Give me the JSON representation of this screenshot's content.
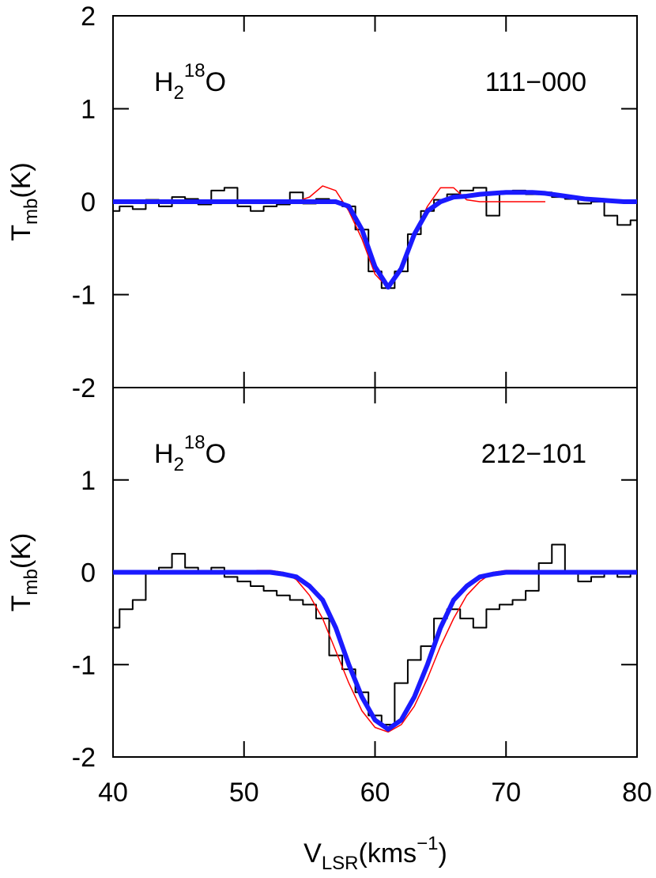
{
  "chart_data": [
    {
      "type": "line",
      "molecule": [
        "H",
        "2",
        "18",
        "O"
      ],
      "transition": "111−000",
      "ylabel": [
        "T",
        "mb",
        "(K)"
      ],
      "xlim": [
        40,
        80
      ],
      "ylim": [
        -2,
        2
      ],
      "yticks": [
        -2,
        -1,
        0,
        1,
        2
      ],
      "series": [
        {
          "color": "#000000",
          "drawstyle": "steps-mid",
          "width": 2,
          "x": [
            40,
            41,
            42,
            43,
            44,
            45,
            46,
            47,
            48,
            49,
            50,
            51,
            52,
            53,
            54,
            55,
            56,
            57,
            58,
            59,
            60,
            61,
            62,
            63,
            64,
            65,
            66,
            67,
            68,
            69,
            70,
            71,
            72,
            73,
            74,
            75,
            76,
            77,
            78,
            79,
            80
          ],
          "values": [
            -0.1,
            -0.05,
            -0.08,
            0.02,
            -0.05,
            0.05,
            0.03,
            -0.03,
            0.12,
            0.15,
            -0.05,
            -0.1,
            -0.05,
            -0.03,
            0.1,
            -0.02,
            0.03,
            0,
            -0.05,
            -0.3,
            -0.75,
            -0.93,
            -0.75,
            -0.35,
            -0.1,
            0.02,
            0.08,
            0.12,
            0.15,
            -0.15,
            0.1,
            0.12,
            0.08,
            0.1,
            0.05,
            0.03,
            -0.02,
            0,
            -0.15,
            -0.25,
            -0.2
          ]
        },
        {
          "color": "#ff0000",
          "drawstyle": "line",
          "width": 1.5,
          "x": [
            49,
            50,
            51,
            52,
            53,
            54,
            55,
            56,
            57,
            58,
            59,
            60,
            61,
            62,
            63,
            64,
            65,
            66,
            67,
            68,
            69,
            70,
            71,
            72,
            73
          ],
          "values": [
            0,
            0,
            0,
            0,
            0,
            0,
            0.05,
            0.17,
            0.12,
            -0.1,
            -0.4,
            -0.78,
            -0.93,
            -0.72,
            -0.35,
            -0.05,
            0.15,
            0.15,
            0.02,
            0,
            0,
            0,
            0,
            0,
            0
          ]
        },
        {
          "color": "#1a1aff",
          "drawstyle": "line",
          "width": 6,
          "x": [
            40,
            41,
            42,
            43,
            44,
            45,
            46,
            47,
            48,
            49,
            50,
            51,
            52,
            53,
            54,
            55,
            56,
            57,
            58,
            59,
            60,
            61,
            62,
            63,
            64,
            65,
            66,
            67,
            68,
            69,
            70,
            71,
            72,
            73,
            74,
            75,
            76,
            77,
            78,
            79,
            80
          ],
          "values": [
            0,
            0,
            0,
            0,
            0,
            0,
            0,
            0,
            0,
            0,
            0,
            0,
            0,
            0,
            0,
            0,
            0,
            0,
            -0.05,
            -0.3,
            -0.7,
            -0.92,
            -0.72,
            -0.35,
            -0.1,
            0,
            0.05,
            0.06,
            0.08,
            0.09,
            0.1,
            0.1,
            0.1,
            0.09,
            0.07,
            0.05,
            0.03,
            0.02,
            0.01,
            0,
            0
          ]
        }
      ]
    },
    {
      "type": "line",
      "molecule": [
        "H",
        "2",
        "18",
        "O"
      ],
      "transition": "212−101",
      "ylabel": [
        "T",
        "mb",
        "(K)"
      ],
      "xlabel": [
        "V",
        "LSR",
        "(kms",
        "−1",
        ")"
      ],
      "xlim": [
        40,
        80
      ],
      "xticks": [
        40,
        50,
        60,
        70,
        80
      ],
      "ylim": [
        -2,
        2
      ],
      "yticks": [
        -2,
        -1,
        0,
        1
      ],
      "series": [
        {
          "color": "#000000",
          "drawstyle": "steps-mid",
          "width": 2,
          "x": [
            40,
            41,
            42,
            43,
            44,
            45,
            46,
            47,
            48,
            49,
            50,
            51,
            52,
            53,
            54,
            55,
            56,
            57,
            58,
            59,
            60,
            61,
            62,
            63,
            64,
            65,
            66,
            67,
            68,
            69,
            70,
            71,
            72,
            73,
            74,
            75,
            76,
            77,
            78,
            79,
            80
          ],
          "values": [
            -0.6,
            -0.4,
            -0.3,
            0,
            0.05,
            0.2,
            0.05,
            0,
            0.05,
            -0.05,
            -0.1,
            -0.15,
            -0.2,
            -0.25,
            -0.3,
            -0.35,
            -0.5,
            -0.9,
            -1.05,
            -1.3,
            -1.55,
            -1.65,
            -1.2,
            -0.95,
            -0.8,
            -0.5,
            -0.4,
            -0.5,
            -0.6,
            -0.4,
            -0.35,
            -0.3,
            -0.2,
            0.1,
            0.3,
            0,
            -0.1,
            -0.05,
            0,
            -0.05,
            0
          ]
        },
        {
          "color": "#ff0000",
          "drawstyle": "line",
          "width": 1.5,
          "x": [
            49,
            50,
            51,
            52,
            53,
            54,
            55,
            56,
            57,
            58,
            59,
            60,
            61,
            62,
            63,
            64,
            65,
            66,
            67,
            68,
            69,
            70,
            71,
            72,
            73
          ],
          "values": [
            0,
            0.01,
            0.02,
            0.02,
            0,
            -0.08,
            -0.25,
            -0.5,
            -0.85,
            -1.2,
            -1.5,
            -1.68,
            -1.73,
            -1.65,
            -1.45,
            -1.15,
            -0.8,
            -0.5,
            -0.25,
            -0.1,
            0,
            0.02,
            0.02,
            0,
            0
          ]
        },
        {
          "color": "#1a1aff",
          "drawstyle": "line",
          "width": 6,
          "x": [
            40,
            41,
            42,
            43,
            44,
            45,
            46,
            47,
            48,
            49,
            50,
            51,
            52,
            53,
            54,
            55,
            56,
            57,
            58,
            59,
            60,
            61,
            62,
            63,
            64,
            65,
            66,
            67,
            68,
            69,
            70,
            71,
            72,
            73,
            74,
            75,
            76,
            77,
            78,
            79,
            80
          ],
          "values": [
            0,
            0,
            0,
            0,
            0,
            0,
            0,
            0,
            0,
            0,
            0,
            0,
            0,
            -0.02,
            -0.05,
            -0.15,
            -0.3,
            -0.6,
            -1,
            -1.35,
            -1.6,
            -1.7,
            -1.6,
            -1.35,
            -1,
            -0.6,
            -0.3,
            -0.15,
            -0.05,
            -0.02,
            0,
            0,
            0,
            0,
            0,
            0,
            0,
            0,
            0,
            0,
            0
          ]
        }
      ]
    }
  ]
}
